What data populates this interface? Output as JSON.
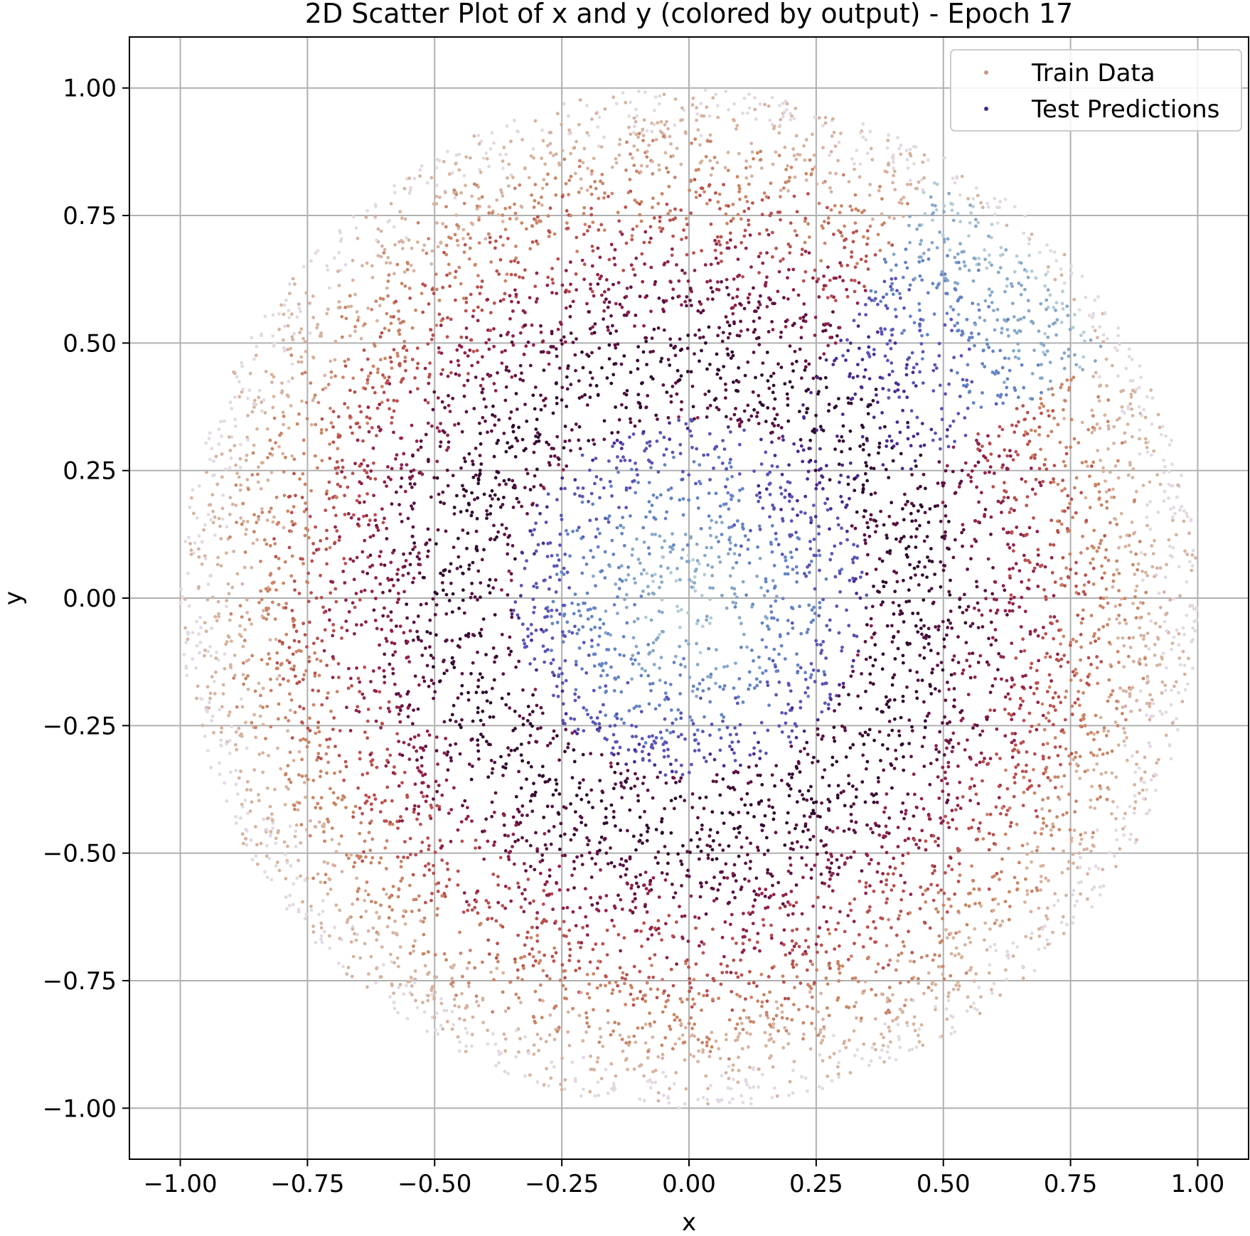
{
  "chart_data": {
    "type": "scatter",
    "title": "2D Scatter Plot of x and y (colored by output) - Epoch 17",
    "xlabel": "x",
    "ylabel": "y",
    "xlim": [
      -1.1,
      1.1
    ],
    "ylim": [
      -1.1,
      1.1
    ],
    "grid": true,
    "legend_position": "top-right",
    "xticks": [
      -1.0,
      -0.75,
      -0.5,
      -0.25,
      0.0,
      0.25,
      0.5,
      0.75,
      1.0
    ],
    "yticks": [
      -1.0,
      -0.75,
      -0.5,
      -0.25,
      0.0,
      0.25,
      0.5,
      0.75,
      1.0
    ],
    "xtick_labels": [
      "−1.00",
      "−0.75",
      "−0.50",
      "−0.25",
      "0.00",
      "0.25",
      "0.50",
      "0.75",
      "1.00"
    ],
    "ytick_labels": [
      "−1.00",
      "−0.75",
      "−0.50",
      "−0.25",
      "0.00",
      "0.25",
      "0.50",
      "0.75",
      "1.00"
    ],
    "series": [
      {
        "name": "Train Data",
        "color": "#c89a80",
        "region": "unit disk, r <= 1.0",
        "colored_by": "output",
        "colormap": [
          "#e2d9e2",
          "#d6b3a0",
          "#c98567",
          "#b8504f",
          "#8f2249",
          "#5a1140",
          "#2f0a2e"
        ]
      },
      {
        "name": "Test Predictions",
        "color": "#4b2a8a",
        "region": "wedge from origin toward upper-right, angle 30° to 60°, r <= 0.95",
        "colored_by": "output",
        "colormap": [
          "#b3ccd6",
          "#88a8c8",
          "#6484c4",
          "#5a55b5",
          "#4a2a8f",
          "#2f0a2e"
        ]
      }
    ]
  }
}
